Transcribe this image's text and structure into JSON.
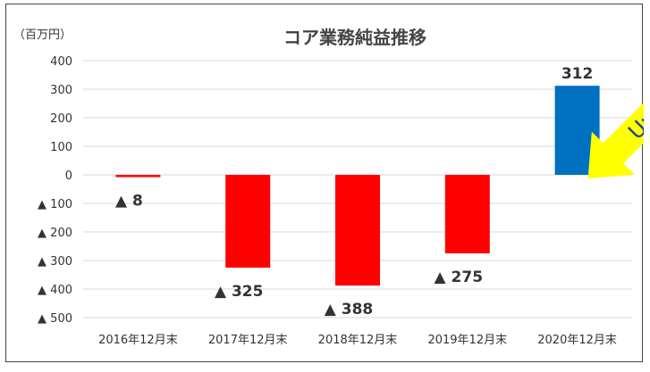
{
  "chart_data": {
    "type": "bar",
    "title": "コア業務純益推移",
    "unit_label": "（百万円）",
    "categories": [
      "2016年12月末",
      "2017年12月末",
      "2018年12月末",
      "2019年12月末",
      "2020年12月末"
    ],
    "values": [
      -8,
      -325,
      -388,
      -275,
      312
    ],
    "data_labels": [
      "▲ 8",
      "▲ 325",
      "▲ 388",
      "▲ 275",
      "312"
    ],
    "y_ticks": [
      400,
      300,
      200,
      100,
      0,
      -100,
      -200,
      -300,
      -400,
      -500
    ],
    "y_tick_labels": [
      "400",
      "300",
      "200",
      "100",
      "0",
      "▲ 100",
      "▲ 200",
      "▲ 300",
      "▲ 400",
      "▲ 500"
    ],
    "ylim": [
      -500,
      400
    ],
    "grid": true,
    "colors": {
      "negative": "#ff0000",
      "positive": "#0070c0",
      "grid": "#d9d9d9",
      "arrow": "#ffff00"
    },
    "annotation": {
      "text": "Up!!",
      "color": "#1f3d99"
    }
  }
}
